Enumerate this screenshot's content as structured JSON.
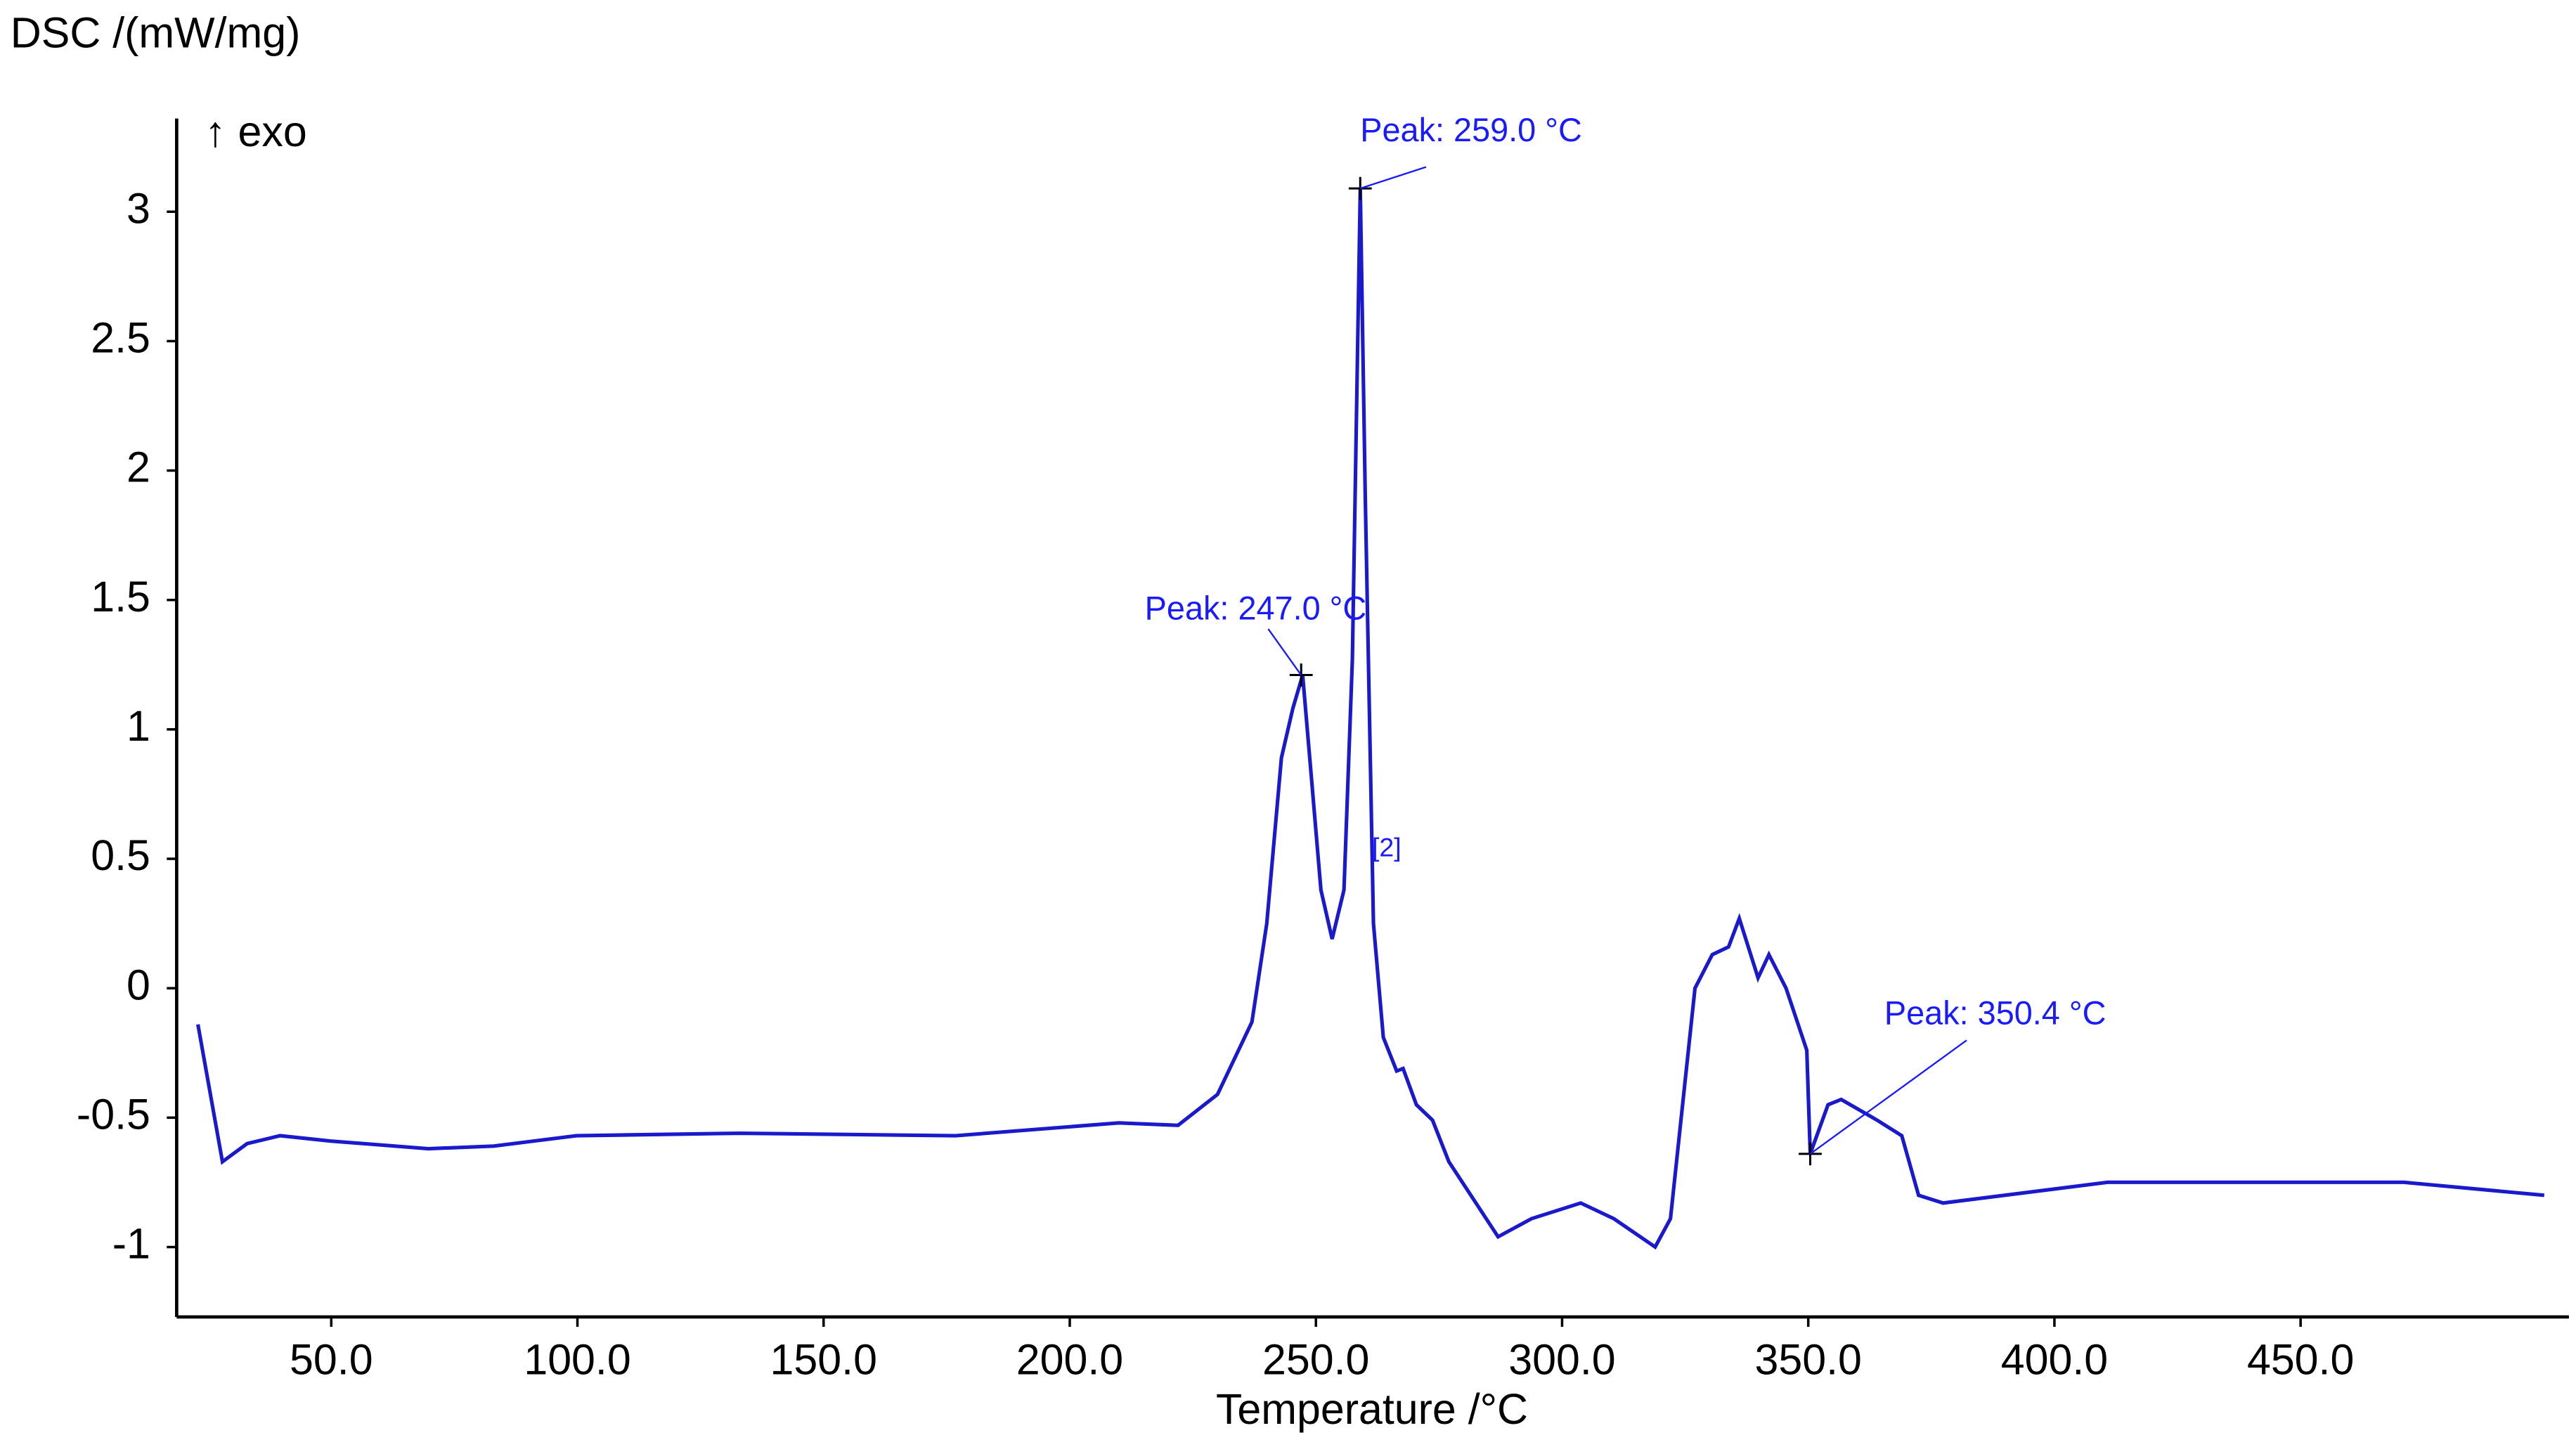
{
  "chart_data": {
    "type": "line",
    "y_label": "DSC /(mW/mg)",
    "x_label": "Temperature /°C",
    "direction_label": "↑ exo",
    "curve_label": "[2]",
    "color": "#1a1acc",
    "xlim": [
      18.6,
      504.5
    ],
    "ylim": [
      -1.27,
      3.36
    ],
    "xticks": [
      {
        "value": 50,
        "label": "50.0"
      },
      {
        "value": 100,
        "label": "100.0"
      },
      {
        "value": 150,
        "label": "150.0"
      },
      {
        "value": 200,
        "label": "200.0"
      },
      {
        "value": 250,
        "label": "250.0"
      },
      {
        "value": 300,
        "label": "300.0"
      },
      {
        "value": 350,
        "label": "350.0"
      },
      {
        "value": 400,
        "label": "400.0"
      },
      {
        "value": 450,
        "label": "450.0"
      }
    ],
    "yticks": [
      -1,
      -0.5,
      0,
      0.5,
      1,
      1.5,
      2,
      2.5,
      3
    ],
    "x": [
      22.9,
      27.9,
      32.9,
      39.6,
      49.7,
      69.7,
      83,
      99.8,
      133,
      176.8,
      210,
      222,
      230,
      237,
      240,
      243,
      245.3,
      247.3,
      249,
      251,
      253.3,
      255.7,
      257.4,
      259,
      260,
      261.7,
      263.7,
      266.4,
      267.7,
      270.4,
      273.7,
      277,
      287,
      293.8,
      303.8,
      310.5,
      318.9,
      322,
      327,
      330.5,
      333.8,
      336,
      339.8,
      342,
      345.5,
      349.7,
      350.4,
      354,
      356.7,
      364,
      369,
      372.4,
      377.4,
      410.8,
      437.6,
      471,
      499.5
    ],
    "values": [
      -0.14,
      -0.67,
      -0.6,
      -0.57,
      -0.59,
      -0.62,
      -0.61,
      -0.57,
      -0.56,
      -0.57,
      -0.52,
      -0.53,
      -0.41,
      -0.13,
      0.25,
      0.89,
      1.08,
      1.21,
      0.83,
      0.38,
      0.19,
      0.38,
      1.27,
      3.09,
      1.91,
      0.25,
      -0.19,
      -0.32,
      -0.31,
      -0.45,
      -0.51,
      -0.67,
      -0.96,
      -0.89,
      -0.83,
      -0.89,
      -1.0,
      -0.89,
      0.0,
      0.13,
      0.16,
      0.27,
      0.04,
      0.13,
      0.0,
      -0.24,
      -0.64,
      -0.45,
      -0.43,
      -0.51,
      -0.57,
      -0.8,
      -0.83,
      -0.75,
      -0.75,
      -0.75,
      -0.8
    ],
    "annotations": [
      {
        "text": "Peak: 259.0 °C",
        "x": 259.0,
        "y": 3.09
      },
      {
        "text": "Peak: 247.0 °C",
        "x": 247.0,
        "y": 1.21
      },
      {
        "text": "Peak: 350.4 °C",
        "x": 350.4,
        "y": -0.64
      }
    ]
  }
}
